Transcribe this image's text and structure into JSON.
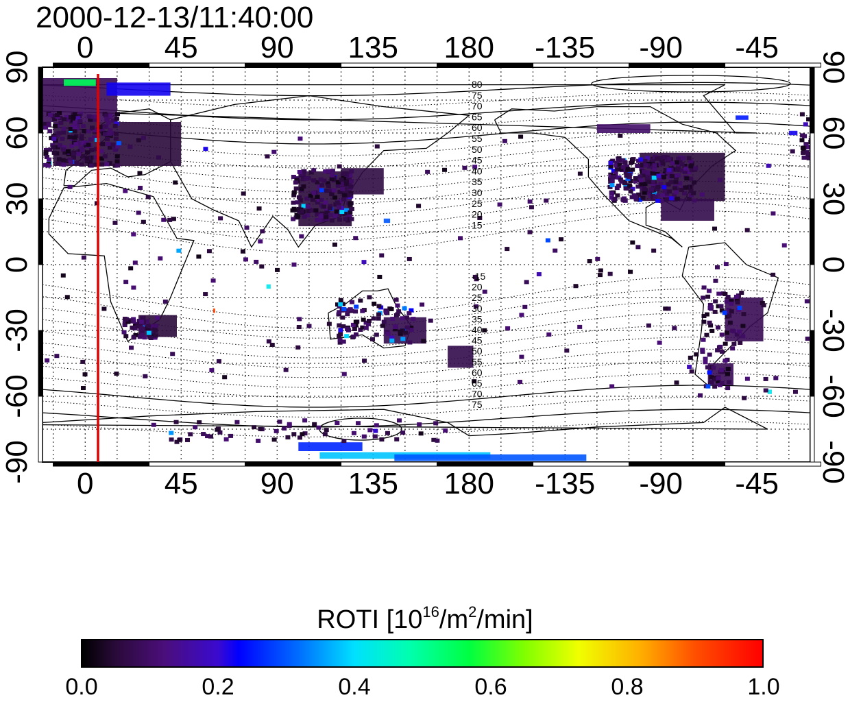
{
  "title": "2000-12-13/11:40:00",
  "map": {
    "lon_ticks": [
      "0",
      "45",
      "90",
      "135",
      "180",
      "-135",
      "-90",
      "-45"
    ],
    "lat_ticks_left": [
      "90",
      "60",
      "30",
      "0",
      "-30",
      "-60",
      "-90"
    ],
    "lat_ticks_right": [
      "90",
      "60",
      "30",
      "0",
      "-30",
      "-60",
      "-90"
    ],
    "contour_labels_north": [
      "80",
      "75",
      "70",
      "65",
      "60",
      "55",
      "50",
      "45",
      "40",
      "35",
      "30",
      "25",
      "20",
      "15"
    ],
    "contour_labels_south": [
      "-15",
      "20",
      "25",
      "30",
      "35",
      "40",
      "45",
      "50",
      "55",
      "60",
      "65",
      "70",
      "75"
    ],
    "marker_line_color": "#e00000",
    "roti_cells": [
      {
        "lon": -20,
        "lat": 75,
        "w": 35,
        "h": 20,
        "roti": 0.08
      },
      {
        "lon": -15,
        "lat": 55,
        "w": 60,
        "h": 20,
        "roti": 0.05
      },
      {
        "lon": 10,
        "lat": 80,
        "w": 30,
        "h": 6,
        "roti": 0.22
      },
      {
        "lon": -10,
        "lat": 83,
        "w": 15,
        "h": 3,
        "roti": 0.55
      },
      {
        "lon": 25,
        "lat": -28,
        "w": 18,
        "h": 10,
        "roti": 0.05
      },
      {
        "lon": 100,
        "lat": 30,
        "w": 25,
        "h": 25,
        "roti": 0.05
      },
      {
        "lon": 120,
        "lat": 38,
        "w": 20,
        "h": 12,
        "roti": 0.06
      },
      {
        "lon": -100,
        "lat": 40,
        "w": 40,
        "h": 22,
        "roti": 0.05
      },
      {
        "lon": -90,
        "lat": 25,
        "w": 25,
        "h": 10,
        "roti": 0.07
      },
      {
        "lon": -60,
        "lat": -25,
        "w": 18,
        "h": 20,
        "roti": 0.08
      },
      {
        "lon": -68,
        "lat": -50,
        "w": 12,
        "h": 10,
        "roti": 0.08
      },
      {
        "lon": 140,
        "lat": -30,
        "w": 20,
        "h": 12,
        "roti": 0.07
      },
      {
        "lon": 170,
        "lat": -42,
        "w": 12,
        "h": 10,
        "roti": 0.07
      },
      {
        "lon": 100,
        "lat": -83,
        "w": 30,
        "h": 4,
        "roti": 0.26
      },
      {
        "lon": 110,
        "lat": -87,
        "w": 80,
        "h": 3,
        "roti": 0.38
      },
      {
        "lon": 145,
        "lat": -88,
        "w": 90,
        "h": 3,
        "roti": 0.3
      },
      {
        "lon": 60,
        "lat": -21,
        "w": 1,
        "h": 2,
        "roti": 0.92
      },
      {
        "lon": 85,
        "lat": -10,
        "w": 2,
        "h": 2,
        "roti": 0.42
      },
      {
        "lon": -40,
        "lat": -58,
        "w": 2,
        "h": 2,
        "roti": 0.42
      },
      {
        "lon": -30,
        "lat": 60,
        "w": 4,
        "h": 2,
        "roti": 0.22
      },
      {
        "lon": -55,
        "lat": 67,
        "w": 6,
        "h": 2,
        "roti": 0.25
      },
      {
        "lon": -120,
        "lat": 62,
        "w": 25,
        "h": 4,
        "roti": 0.1
      },
      {
        "lon": 140,
        "lat": 20,
        "w": 3,
        "h": 2,
        "roti": 0.3
      }
    ]
  },
  "colorbar": {
    "title_prefix": "ROTI  [10",
    "title_sup1": "16",
    "title_mid": "/m",
    "title_sup2": "2",
    "title_suffix": "/min]",
    "ticks": [
      "0.0",
      "0.2",
      "0.4",
      "0.6",
      "0.8",
      "1.0"
    ]
  }
}
